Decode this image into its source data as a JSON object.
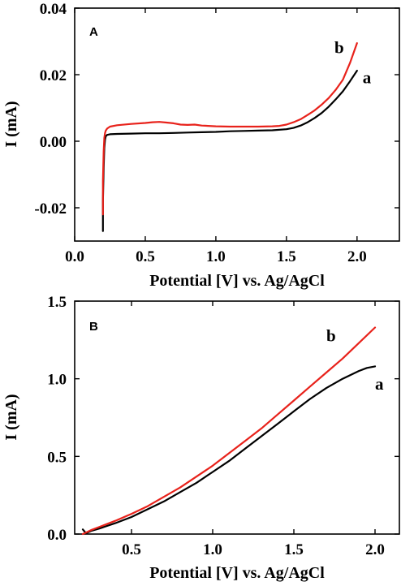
{
  "chart_data": [
    {
      "type": "line",
      "panel": "A",
      "xlabel": "Potential [V] vs. Ag/AgCl",
      "ylabel": "I (mA)",
      "xlim": [
        0.0,
        2.3
      ],
      "ylim": [
        -0.03,
        0.04
      ],
      "xticks": [
        0.0,
        0.5,
        1.0,
        1.5,
        2.0
      ],
      "xtick_labels": [
        "0.0",
        "0.5",
        "1.0",
        "1.5",
        "2.0"
      ],
      "yticks": [
        -0.02,
        0.0,
        0.02,
        0.04
      ],
      "ytick_labels": [
        "-0.02",
        "0.00",
        "0.02",
        "0.04"
      ],
      "grid": false,
      "series": [
        {
          "name": "a",
          "color": "#000000",
          "label_pos": [
            2.04,
            0.0175
          ],
          "x": [
            0.2,
            0.2,
            0.205,
            0.21,
            0.215,
            0.22,
            0.23,
            0.25,
            0.3,
            0.4,
            0.5,
            0.6,
            0.7,
            0.8,
            0.9,
            1.0,
            1.1,
            1.2,
            1.3,
            1.4,
            1.5,
            1.55,
            1.6,
            1.65,
            1.7,
            1.75,
            1.8,
            1.85,
            1.9,
            1.95,
            2.0
          ],
          "y": [
            -0.027,
            -0.018,
            -0.008,
            -0.002,
            0.0005,
            0.0015,
            0.0019,
            0.0021,
            0.0022,
            0.0023,
            0.0024,
            0.0024,
            0.0025,
            0.0026,
            0.0027,
            0.0028,
            0.003,
            0.0031,
            0.0032,
            0.0033,
            0.0036,
            0.004,
            0.0047,
            0.0057,
            0.007,
            0.0085,
            0.0104,
            0.0126,
            0.015,
            0.018,
            0.0212
          ]
        },
        {
          "name": "b",
          "color": "#e8221b",
          "label_pos": [
            1.84,
            0.0265
          ],
          "x": [
            0.2,
            0.2,
            0.205,
            0.21,
            0.215,
            0.22,
            0.23,
            0.25,
            0.3,
            0.4,
            0.5,
            0.55,
            0.6,
            0.65,
            0.7,
            0.75,
            0.8,
            0.85,
            0.9,
            1.0,
            1.1,
            1.2,
            1.3,
            1.4,
            1.45,
            1.5,
            1.55,
            1.6,
            1.65,
            1.7,
            1.75,
            1.8,
            1.85,
            1.9,
            1.95,
            2.0
          ],
          "y": [
            -0.022,
            -0.012,
            -0.003,
            0.001,
            0.0025,
            0.0032,
            0.0038,
            0.0044,
            0.0048,
            0.0052,
            0.0055,
            0.0057,
            0.0058,
            0.0056,
            0.0054,
            0.005,
            0.0049,
            0.005,
            0.0047,
            0.0045,
            0.0044,
            0.0044,
            0.0044,
            0.0045,
            0.0046,
            0.005,
            0.0057,
            0.0066,
            0.0079,
            0.0093,
            0.011,
            0.013,
            0.0155,
            0.0185,
            0.0235,
            0.0295
          ]
        }
      ]
    },
    {
      "type": "line",
      "panel": "B",
      "xlabel": "Potential [V] vs. Ag/AgCl",
      "ylabel": "I (mA)",
      "xlim": [
        0.15,
        2.15
      ],
      "ylim": [
        0.0,
        1.5
      ],
      "xticks": [
        0.5,
        1.0,
        1.5,
        2.0
      ],
      "xtick_labels": [
        "0.5",
        "1.0",
        "1.5",
        "2.0"
      ],
      "yticks": [
        0.0,
        0.5,
        1.0,
        1.5
      ],
      "ytick_labels": [
        "0.0",
        "0.5",
        "1.0",
        "1.5"
      ],
      "grid": false,
      "series": [
        {
          "name": "a",
          "color": "#000000",
          "label_pos": [
            2.0,
            0.93
          ],
          "x": [
            0.2,
            0.22,
            0.25,
            0.3,
            0.4,
            0.5,
            0.6,
            0.7,
            0.8,
            0.9,
            1.0,
            1.1,
            1.2,
            1.3,
            1.4,
            1.5,
            1.6,
            1.7,
            1.8,
            1.9,
            1.95,
            2.0
          ],
          "y": [
            0.03,
            0.005,
            0.02,
            0.035,
            0.07,
            0.11,
            0.16,
            0.21,
            0.27,
            0.33,
            0.4,
            0.47,
            0.55,
            0.63,
            0.71,
            0.79,
            0.87,
            0.94,
            1.0,
            1.05,
            1.07,
            1.08
          ]
        },
        {
          "name": "b",
          "color": "#e8221b",
          "label_pos": [
            1.7,
            1.24
          ],
          "x": [
            0.2,
            0.22,
            0.25,
            0.3,
            0.4,
            0.5,
            0.6,
            0.7,
            0.8,
            0.9,
            1.0,
            1.1,
            1.2,
            1.3,
            1.4,
            1.5,
            1.6,
            1.7,
            1.8,
            1.9,
            2.0
          ],
          "y": [
            0.0,
            0.01,
            0.025,
            0.045,
            0.085,
            0.13,
            0.18,
            0.24,
            0.3,
            0.37,
            0.44,
            0.52,
            0.6,
            0.68,
            0.77,
            0.86,
            0.95,
            1.04,
            1.13,
            1.23,
            1.33
          ]
        }
      ]
    }
  ]
}
